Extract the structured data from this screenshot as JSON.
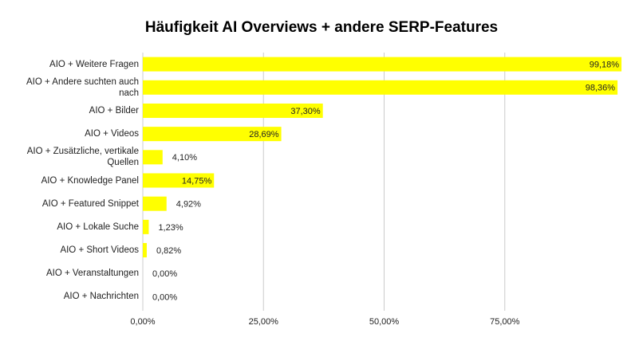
{
  "chart_data": {
    "type": "bar",
    "orientation": "horizontal",
    "title": "Häufigkeit AI Overviews + andere SERP-Features",
    "categories": [
      "AIO + Weitere Fragen",
      "AIO + Andere suchten auch nach",
      "AIO + Bilder",
      "AIO + Videos",
      "AIO + Zusätzliche, vertikale Quellen",
      "AIO + Knowledge Panel",
      "AIO + Featured Snippet",
      "AIO + Lokale Suche",
      "AIO + Short Videos",
      "AIO + Veranstaltungen",
      "AIO + Nachrichten"
    ],
    "values": [
      99.18,
      98.36,
      37.3,
      28.69,
      4.1,
      14.75,
      4.92,
      1.23,
      0.82,
      0,
      0
    ],
    "value_labels": [
      "99,18%",
      "98,36%",
      "37,30%",
      "28,69%",
      "4,10%",
      "14,75%",
      "4,92%",
      "1,23%",
      "0,82%",
      "0,00%",
      "0,00%"
    ],
    "color": "#ffff00",
    "xlim": [
      0,
      100
    ],
    "xticks": [
      {
        "value": 0,
        "label": "0,00%"
      },
      {
        "value": 25,
        "label": "25,00%"
      },
      {
        "value": 50,
        "label": "50,00%"
      },
      {
        "value": 75,
        "label": "75,00%"
      }
    ],
    "grid": true
  }
}
